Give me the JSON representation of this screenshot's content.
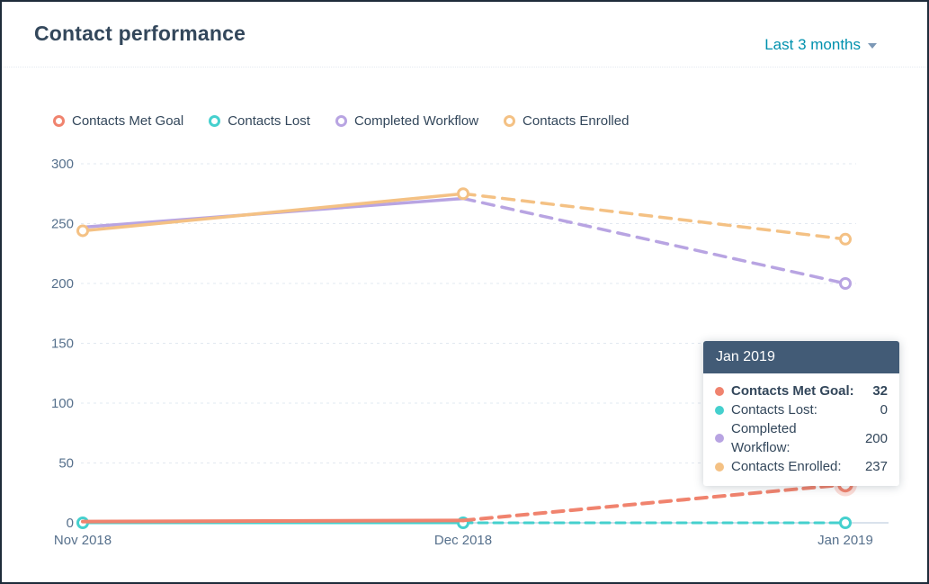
{
  "header": {
    "title": "Contact performance",
    "date_range_label": "Last 3 months"
  },
  "colors": {
    "title_text": "#33475b",
    "link_teal": "#0091ae",
    "tooltip_header_bg": "#425b76",
    "gridline": "#e2e8f0",
    "axis_line": "#b3c5d9",
    "axis_text": "#56708c"
  },
  "chart_data": {
    "type": "line",
    "title": "Contact performance",
    "x": [
      "Nov 2018",
      "Dec 2018",
      "Jan 2019"
    ],
    "series": [
      {
        "name": "Contacts Met Goal",
        "color": "#f0836e",
        "values": [
          1,
          2,
          32
        ],
        "markers": [
          false,
          false,
          "highlight"
        ]
      },
      {
        "name": "Contacts Lost",
        "color": "#45d0ce",
        "values": [
          0,
          0,
          0
        ],
        "markers": [
          true,
          true,
          true
        ]
      },
      {
        "name": "Completed Workflow",
        "color": "#b8a4e2",
        "values": [
          247,
          271,
          200
        ],
        "markers": [
          false,
          false,
          true
        ]
      },
      {
        "name": "Contacts Enrolled",
        "color": "#f4c184",
        "values": [
          244,
          275,
          237
        ],
        "markers": [
          true,
          true,
          true
        ]
      }
    ],
    "ylim": [
      0,
      300
    ],
    "yticks": [
      0,
      50,
      100,
      150,
      200,
      250,
      300
    ],
    "grid": "dashed-horizontal",
    "legend_position": "top",
    "solid_until_index": 1,
    "dashed_after_index": 1,
    "highlight": {
      "series": "Contacts Met Goal",
      "x_index": 2
    }
  },
  "tooltip": {
    "title": "Jan 2019",
    "rows": [
      {
        "label": "Contacts Met Goal:",
        "value": "32",
        "color": "#f0836e",
        "bold": true
      },
      {
        "label": "Contacts Lost:",
        "value": "0",
        "color": "#45d0ce",
        "bold": false
      },
      {
        "label": "Completed Workflow:",
        "value": "200",
        "color": "#b8a4e2",
        "bold": false
      },
      {
        "label": "Contacts Enrolled:",
        "value": "237",
        "color": "#f4c184",
        "bold": false
      }
    ]
  }
}
